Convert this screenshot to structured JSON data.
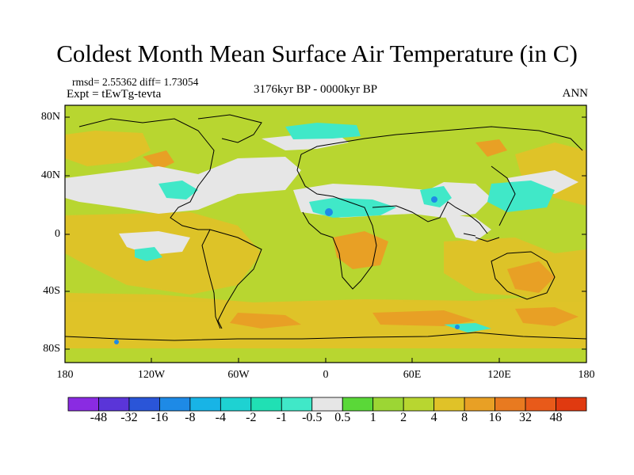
{
  "title": "Coldest Month Mean Surface Air Temperature (in C)",
  "stats": "rmsd= 2.55362  diff= 1.73054",
  "experiment": "Expt = tEwTg-tevta",
  "period": "3176kyr BP - 0000kyr BP",
  "season": "ANN",
  "map": {
    "lat_ticks": [
      "80N",
      "40N",
      "0",
      "40S",
      "80S"
    ],
    "lon_ticks": [
      "180",
      "120W",
      "60W",
      "0",
      "60E",
      "120E",
      "180"
    ],
    "background_color": "#b8d630"
  },
  "colorbar": {
    "labels": [
      "-48",
      "-32",
      "-16",
      "-8",
      "-4",
      "-2",
      "-1",
      "-0.5",
      "0.5",
      "1",
      "2",
      "4",
      "8",
      "16",
      "32",
      "48"
    ],
    "colors": [
      "#8a2be2",
      "#5a35d8",
      "#2a55d8",
      "#1e8ae6",
      "#18b4e6",
      "#1ed2d2",
      "#20e0b4",
      "#40e8c8",
      "#e6e6e6",
      "#5ad838",
      "#9cd634",
      "#b8d630",
      "#e0c228",
      "#e8a025",
      "#e87a20",
      "#e85a1a",
      "#e03a10"
    ]
  }
}
